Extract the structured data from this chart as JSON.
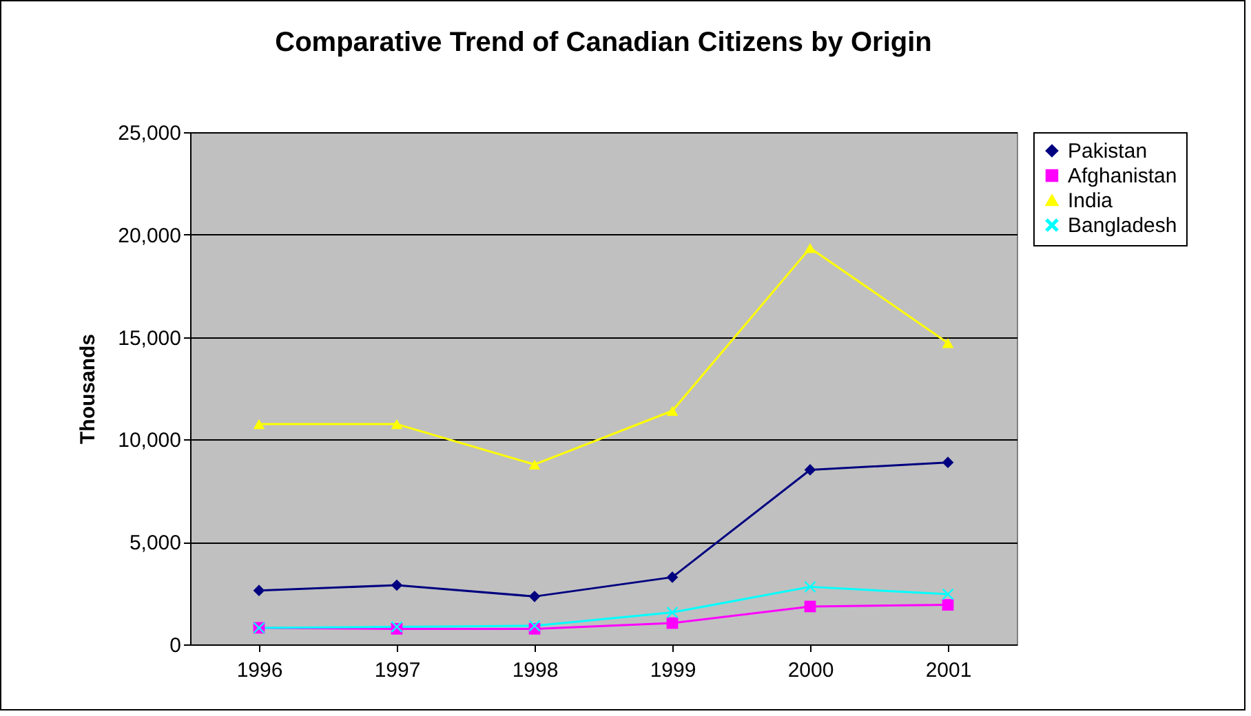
{
  "chart_data": {
    "type": "line",
    "title": "Comparative Trend of Canadian Citizens by Origin",
    "ylabel": "Thousands",
    "categories": [
      "1996",
      "1997",
      "1998",
      "1999",
      "2000",
      "2001"
    ],
    "series": [
      {
        "name": "Pakistan",
        "color": "#000080",
        "marker": "diamond",
        "values": [
          2630,
          2890,
          2340,
          3280,
          8520,
          8880
        ]
      },
      {
        "name": "Afghanistan",
        "color": "#ff00ff",
        "marker": "square",
        "values": [
          810,
          760,
          760,
          1040,
          1850,
          1930
        ]
      },
      {
        "name": "India",
        "color": "#ffff00",
        "marker": "triangle",
        "values": [
          10750,
          10750,
          8780,
          11400,
          19350,
          14710
        ]
      },
      {
        "name": "Bangladesh",
        "color": "#00ffff",
        "marker": "cross",
        "values": [
          810,
          860,
          910,
          1560,
          2810,
          2450
        ]
      }
    ],
    "ylim": [
      0,
      25000
    ],
    "yticks": [
      {
        "value": 0,
        "label": "0"
      },
      {
        "value": 5000,
        "label": "5,000"
      },
      {
        "value": 10000,
        "label": "10,000"
      },
      {
        "value": 15000,
        "label": "15,000"
      },
      {
        "value": 20000,
        "label": "20,000"
      },
      {
        "value": 25000,
        "label": "25,000"
      }
    ],
    "grid": "y",
    "legend": "right"
  }
}
